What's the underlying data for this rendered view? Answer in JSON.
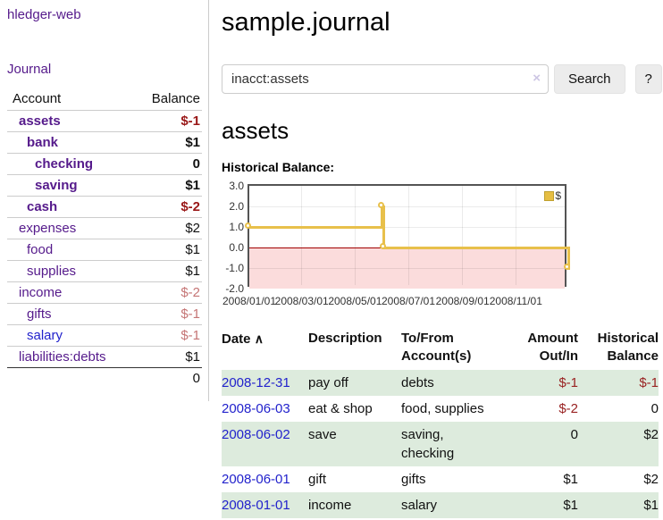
{
  "app": {
    "brand": "hledger-web",
    "nav_journal": "Journal",
    "title": "sample.journal"
  },
  "search": {
    "value": "inacct:assets",
    "clear_icon": "×",
    "button_label": "Search",
    "help_label": "?"
  },
  "account_page": {
    "heading": "assets",
    "chart_label": "Historical Balance:"
  },
  "sidebar": {
    "header": {
      "account": "Account",
      "balance": "Balance"
    },
    "accounts": [
      {
        "name": "assets",
        "depth": 1,
        "bold": true,
        "balance": "$-1"
      },
      {
        "name": "bank",
        "depth": 2,
        "bold": true,
        "balance": "$1"
      },
      {
        "name": "checking",
        "depth": 3,
        "bold": true,
        "balance": "0"
      },
      {
        "name": "saving",
        "depth": 3,
        "bold": true,
        "balance": "$1"
      },
      {
        "name": "cash",
        "depth": 2,
        "bold": true,
        "balance": "$-2"
      },
      {
        "name": "expenses",
        "depth": 1,
        "bold": false,
        "balance": "$2"
      },
      {
        "name": "food",
        "depth": 2,
        "bold": false,
        "balance": "$1"
      },
      {
        "name": "supplies",
        "depth": 2,
        "bold": false,
        "balance": "$1"
      },
      {
        "name": "income",
        "depth": 1,
        "bold": false,
        "balance": "$-2"
      },
      {
        "name": "gifts",
        "depth": 2,
        "bold": false,
        "balance": "$-1"
      },
      {
        "name": "salary",
        "depth": 2,
        "bold": false,
        "balance": "$-1",
        "link_state": "unvisited"
      },
      {
        "name": "liabilities:debts",
        "depth": 1,
        "bold": false,
        "balance": "$1"
      }
    ],
    "total": "0"
  },
  "register": {
    "columns": [
      "Date",
      "Description",
      "To/From Account(s)",
      "Amount Out/In",
      "Historical Balance"
    ],
    "sort_asc_icon": "∧",
    "rows": [
      {
        "date": "2008-12-31",
        "description": "pay off",
        "accounts": "debts",
        "amount": "$-1",
        "balance": "$-1"
      },
      {
        "date": "2008-06-03",
        "description": "eat & shop",
        "accounts": "food, supplies",
        "amount": "$-2",
        "balance": "0"
      },
      {
        "date": "2008-06-02",
        "description": "save",
        "accounts": "saving, checking",
        "amount": "0",
        "balance": "$2"
      },
      {
        "date": "2008-06-01",
        "description": "gift",
        "accounts": "gifts",
        "amount": "$1",
        "balance": "$2"
      },
      {
        "date": "2008-01-01",
        "description": "income",
        "accounts": "salary",
        "amount": "$1",
        "balance": "$1"
      }
    ]
  },
  "chart_data": {
    "type": "line",
    "title": "Historical Balance:",
    "legend": [
      {
        "label": "$",
        "color": "#e6be43"
      }
    ],
    "series": [
      {
        "name": "$",
        "style": "step",
        "points": [
          {
            "x": "2008-01-01",
            "y": 1
          },
          {
            "x": "2008-06-01",
            "y": 2
          },
          {
            "x": "2008-06-03",
            "y": 0
          },
          {
            "x": "2008-12-31",
            "y": -1
          }
        ]
      }
    ],
    "x_domain": [
      "2008-01-01",
      "2008-12-31"
    ],
    "x_ticks": [
      {
        "date": "2008-01-01",
        "label": "2008/01/01"
      },
      {
        "date": "2008-03-01",
        "label": "2008/03/01"
      },
      {
        "date": "2008-05-01",
        "label": "2008/05/01"
      },
      {
        "date": "2008-07-01",
        "label": "2008/07/01"
      },
      {
        "date": "2008-09-01",
        "label": "2008/09/01"
      },
      {
        "date": "2008-11-01",
        "label": "2008/11/01"
      }
    ],
    "y_ticks": [
      {
        "value": 3,
        "label": "3.0"
      },
      {
        "value": 2,
        "label": "2.0"
      },
      {
        "value": 1,
        "label": "1.0"
      },
      {
        "value": 0,
        "label": "0.0"
      },
      {
        "value": -1,
        "label": "-1.0"
      },
      {
        "value": -2,
        "label": "-2.0"
      }
    ],
    "ylim": [
      -2,
      3
    ],
    "grid": true,
    "legend_position": "top-right",
    "negative_region_color": "#fbdcdc",
    "line_color": "#e8c04b",
    "zero_line_color": "#a00000"
  }
}
